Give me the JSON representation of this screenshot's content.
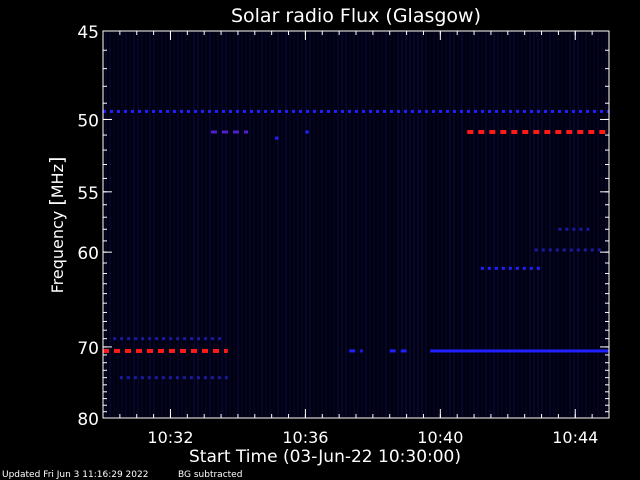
{
  "chart_data": {
    "type": "heatmap",
    "title": "Solar radio Flux (Glasgow)",
    "ylabel_text": "Frequency ",
    "ylabel_unit": "MHz",
    "xlabel": "Start Time (03-Jun-22 10:30:00)",
    "x_range_minutes": [
      0,
      15
    ],
    "ylim": [
      45,
      80
    ],
    "y_ticks": [
      {
        "value": 45,
        "label": "45"
      },
      {
        "value": 50,
        "label": "50"
      },
      {
        "value": 55,
        "label": "55"
      },
      {
        "value": 60,
        "label": "60"
      },
      {
        "value": 70,
        "label": "70"
      },
      {
        "value": 80,
        "label": "80"
      }
    ],
    "x_ticks": [
      {
        "minute": 2,
        "label": "10:32"
      },
      {
        "minute": 6,
        "label": "10:36"
      },
      {
        "minute": 10,
        "label": "10:40"
      },
      {
        "minute": 14,
        "label": "10:44"
      }
    ],
    "background_color": "#000010",
    "colors": {
      "weak": "#1a1aa0",
      "medium": "#2020ff",
      "strong": "#5020d0",
      "hot": "#ff1a1a"
    },
    "features": [
      {
        "name": "line-49.5",
        "freq": 49.5,
        "t_start": 0.0,
        "t_end": 15.0,
        "intensity": "medium",
        "pattern": "dotted"
      },
      {
        "name": "burst-50.8-early",
        "freq": 50.8,
        "t_start": 3.2,
        "t_end": 4.3,
        "intensity": "strong",
        "pattern": "dashed"
      },
      {
        "name": "blip-51.2",
        "freq": 51.2,
        "t_start": 5.1,
        "t_end": 5.2,
        "intensity": "medium",
        "pattern": "solid"
      },
      {
        "name": "blip-50.8-b",
        "freq": 50.8,
        "t_start": 6.0,
        "t_end": 6.1,
        "intensity": "medium",
        "pattern": "solid"
      },
      {
        "name": "hot-50.8",
        "freq": 50.8,
        "t_start": 10.8,
        "t_end": 15.0,
        "intensity": "hot",
        "pattern": "dashed"
      },
      {
        "name": "drift-61.5",
        "freq": 61.5,
        "t_start": 11.2,
        "t_end": 13.0,
        "intensity": "medium",
        "pattern": "dotted"
      },
      {
        "name": "drift-58",
        "freq": 58.0,
        "t_start": 13.5,
        "t_end": 14.5,
        "intensity": "weak",
        "pattern": "dotted"
      },
      {
        "name": "drift-59.8",
        "freq": 59.8,
        "t_start": 12.8,
        "t_end": 14.8,
        "intensity": "weak",
        "pattern": "dotted"
      },
      {
        "name": "line-70.5-early",
        "freq": 70.5,
        "t_start": 0.0,
        "t_end": 3.7,
        "intensity": "hot",
        "pattern": "dashed"
      },
      {
        "name": "line-70.5-mid-a",
        "freq": 70.5,
        "t_start": 7.3,
        "t_end": 7.7,
        "intensity": "medium",
        "pattern": "dashed"
      },
      {
        "name": "line-70.5-mid-b",
        "freq": 70.5,
        "t_start": 8.5,
        "t_end": 9.0,
        "intensity": "medium",
        "pattern": "dashed"
      },
      {
        "name": "line-70.5-late",
        "freq": 70.5,
        "t_start": 9.7,
        "t_end": 15.0,
        "intensity": "medium",
        "pattern": "solid"
      },
      {
        "name": "faint-69",
        "freq": 69.0,
        "t_start": 0.3,
        "t_end": 3.6,
        "intensity": "weak",
        "pattern": "dotted"
      },
      {
        "name": "faint-74",
        "freq": 74.0,
        "t_start": 0.5,
        "t_end": 3.7,
        "intensity": "weak",
        "pattern": "dotted"
      }
    ]
  },
  "footer": {
    "updated": "Updated Fri Jun  3 11:16:29 2022",
    "bg": "BG subtracted"
  }
}
